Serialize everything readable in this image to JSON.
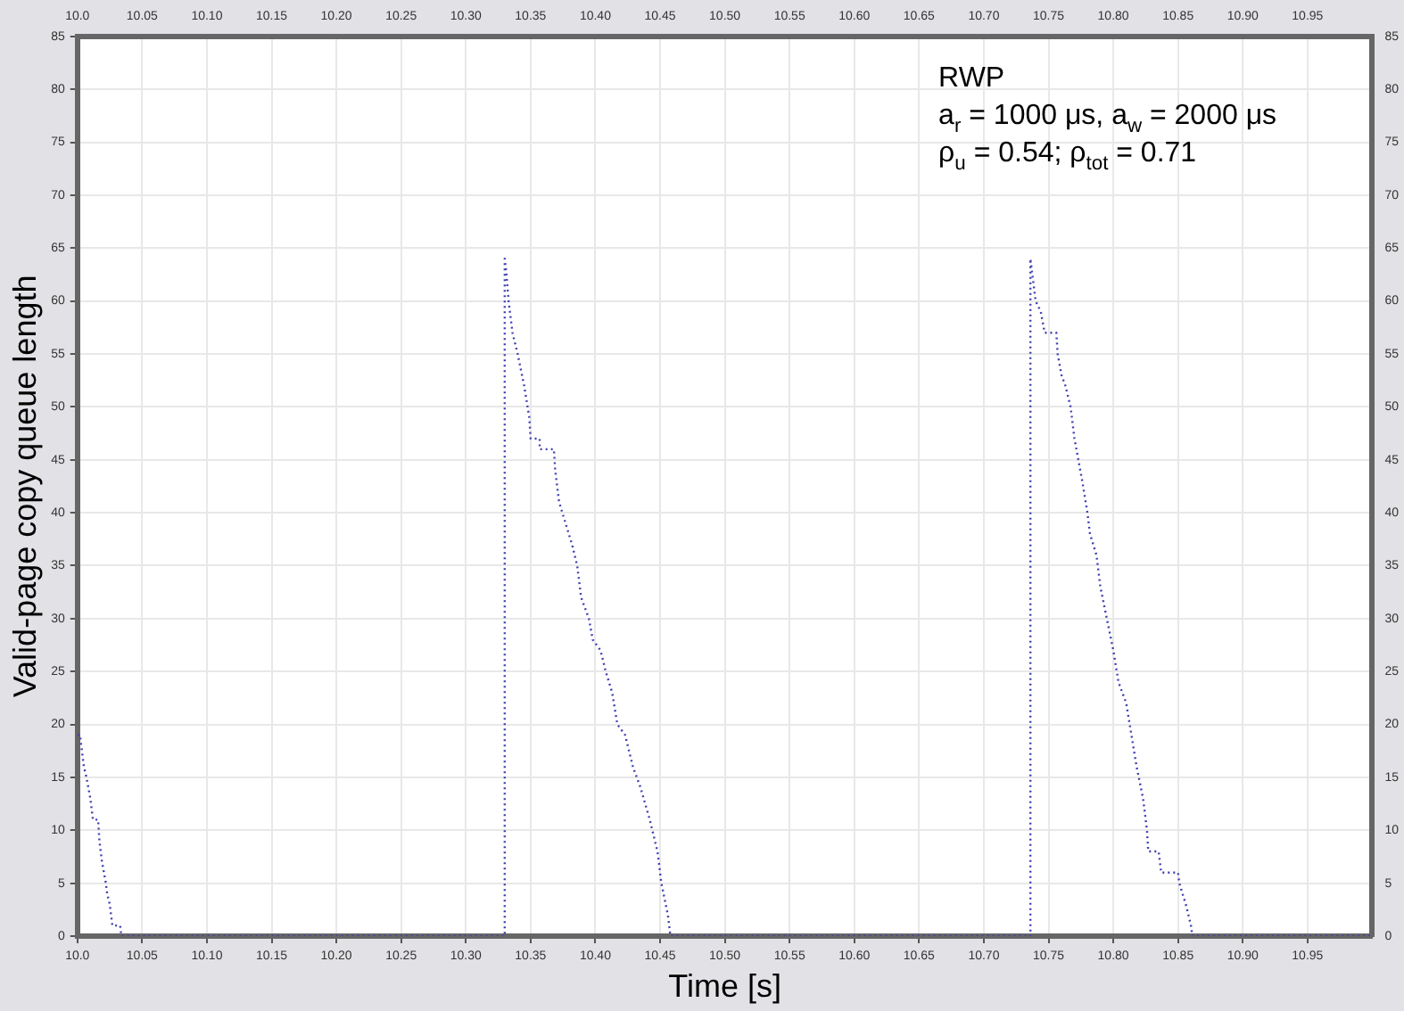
{
  "chart_data": {
    "type": "line",
    "xlabel": "Time [s]",
    "ylabel": "Valid-page copy queue length",
    "annotations": [
      "RWP",
      "a$_{r}$ = 1000 μs, a$_{w}$ = 2000 μs",
      "ρ$_{u}$ = 0.54; ρ$_{tot}$ = 0.71"
    ],
    "series": [
      {
        "color": "#4040b0",
        "x": [
          10.0,
          10.002,
          10.003,
          10.005,
          10.007,
          10.01,
          10.012,
          10.016,
          10.017,
          10.019,
          10.022,
          10.023,
          10.025,
          10.027,
          10.033,
          10.034,
          10.33,
          10.33,
          10.331,
          10.333,
          10.336,
          10.34,
          10.345,
          10.349,
          10.35,
          10.357,
          10.357,
          10.368,
          10.369,
          10.372,
          10.377,
          10.382,
          10.386,
          10.389,
          10.395,
          10.398,
          10.404,
          10.408,
          10.413,
          10.417,
          10.423,
          10.429,
          10.435,
          10.442,
          10.448,
          10.451,
          10.456,
          10.458,
          10.736,
          10.736,
          10.738,
          10.74,
          10.744,
          10.747,
          10.756,
          10.757,
          10.76,
          10.763,
          10.767,
          10.77,
          10.773,
          10.776,
          10.78,
          10.782,
          10.787,
          10.79,
          10.795,
          10.8,
          10.804,
          10.81,
          10.814,
          10.818,
          10.823,
          10.826,
          10.827,
          10.835,
          10.837,
          10.85,
          10.851,
          10.856,
          10.86,
          10.861,
          11.0
        ],
        "values": [
          19,
          19,
          18,
          16,
          15,
          13,
          11,
          11,
          9,
          7,
          5,
          4,
          3,
          1,
          1,
          0,
          0,
          64,
          63,
          60,
          57,
          55,
          52,
          49,
          47,
          47,
          46,
          46,
          44,
          41,
          39,
          37,
          35,
          32,
          30,
          28,
          27,
          25,
          23,
          20,
          19,
          16,
          14,
          11,
          8,
          5,
          2,
          0,
          0,
          64,
          62,
          60,
          59,
          57,
          57,
          55,
          53,
          52,
          50,
          47,
          45,
          43,
          40,
          38,
          36,
          33,
          30,
          27,
          24,
          22,
          19,
          16,
          13,
          10,
          8,
          8,
          6,
          6,
          5,
          3,
          1,
          0,
          0
        ]
      }
    ],
    "xlim": [
      10.0,
      11.0
    ],
    "xticks": [
      {
        "value": 10,
        "label": "10.0"
      },
      10.05,
      {
        "value": 10.1,
        "label": "10.10"
      },
      10.15,
      {
        "value": 10.2,
        "label": "10.20"
      },
      10.25,
      {
        "value": 10.3,
        "label": "10.30"
      },
      10.35,
      {
        "value": 10.4,
        "label": "10.40"
      },
      10.45,
      {
        "value": 10.5,
        "label": "10.50"
      },
      10.55,
      {
        "value": 10.6,
        "label": "10.60"
      },
      10.65,
      {
        "value": 10.7,
        "label": "10.70"
      },
      10.75,
      {
        "value": 10.8,
        "label": "10.80"
      },
      10.85,
      {
        "value": 10.9,
        "label": "10.90"
      },
      10.95
    ],
    "x2lim": [
      10.0,
      11.0
    ],
    "x2ticks": [
      {
        "value": 10,
        "label": "10.0"
      },
      10.05,
      {
        "value": 10.1,
        "label": "10.10"
      },
      10.15,
      {
        "value": 10.2,
        "label": "10.20"
      },
      10.25,
      {
        "value": 10.3,
        "label": "10.30"
      },
      10.35,
      {
        "value": 10.4,
        "label": "10.40"
      },
      10.45,
      {
        "value": 10.5,
        "label": "10.50"
      },
      10.55,
      {
        "value": 10.6,
        "label": "10.60"
      },
      10.65,
      {
        "value": 10.7,
        "label": "10.70"
      },
      10.75,
      {
        "value": 10.8,
        "label": "10.80"
      },
      10.85,
      {
        "value": 10.9,
        "label": "10.90"
      },
      10.95
    ],
    "ylim": [
      0,
      85
    ],
    "yticks": [
      0,
      5,
      10,
      15,
      20,
      25,
      30,
      35,
      40,
      45,
      50,
      55,
      60,
      65,
      70,
      75,
      80,
      85
    ],
    "y2lim": [
      0,
      85
    ],
    "y2ticks": [
      0,
      5,
      10,
      15,
      20,
      25,
      30,
      35,
      40,
      45,
      50,
      55,
      60,
      65,
      70,
      75,
      80,
      85
    ],
    "grid": true,
    "legend": false,
    "marker": "none",
    "line_style": "dotted"
  }
}
